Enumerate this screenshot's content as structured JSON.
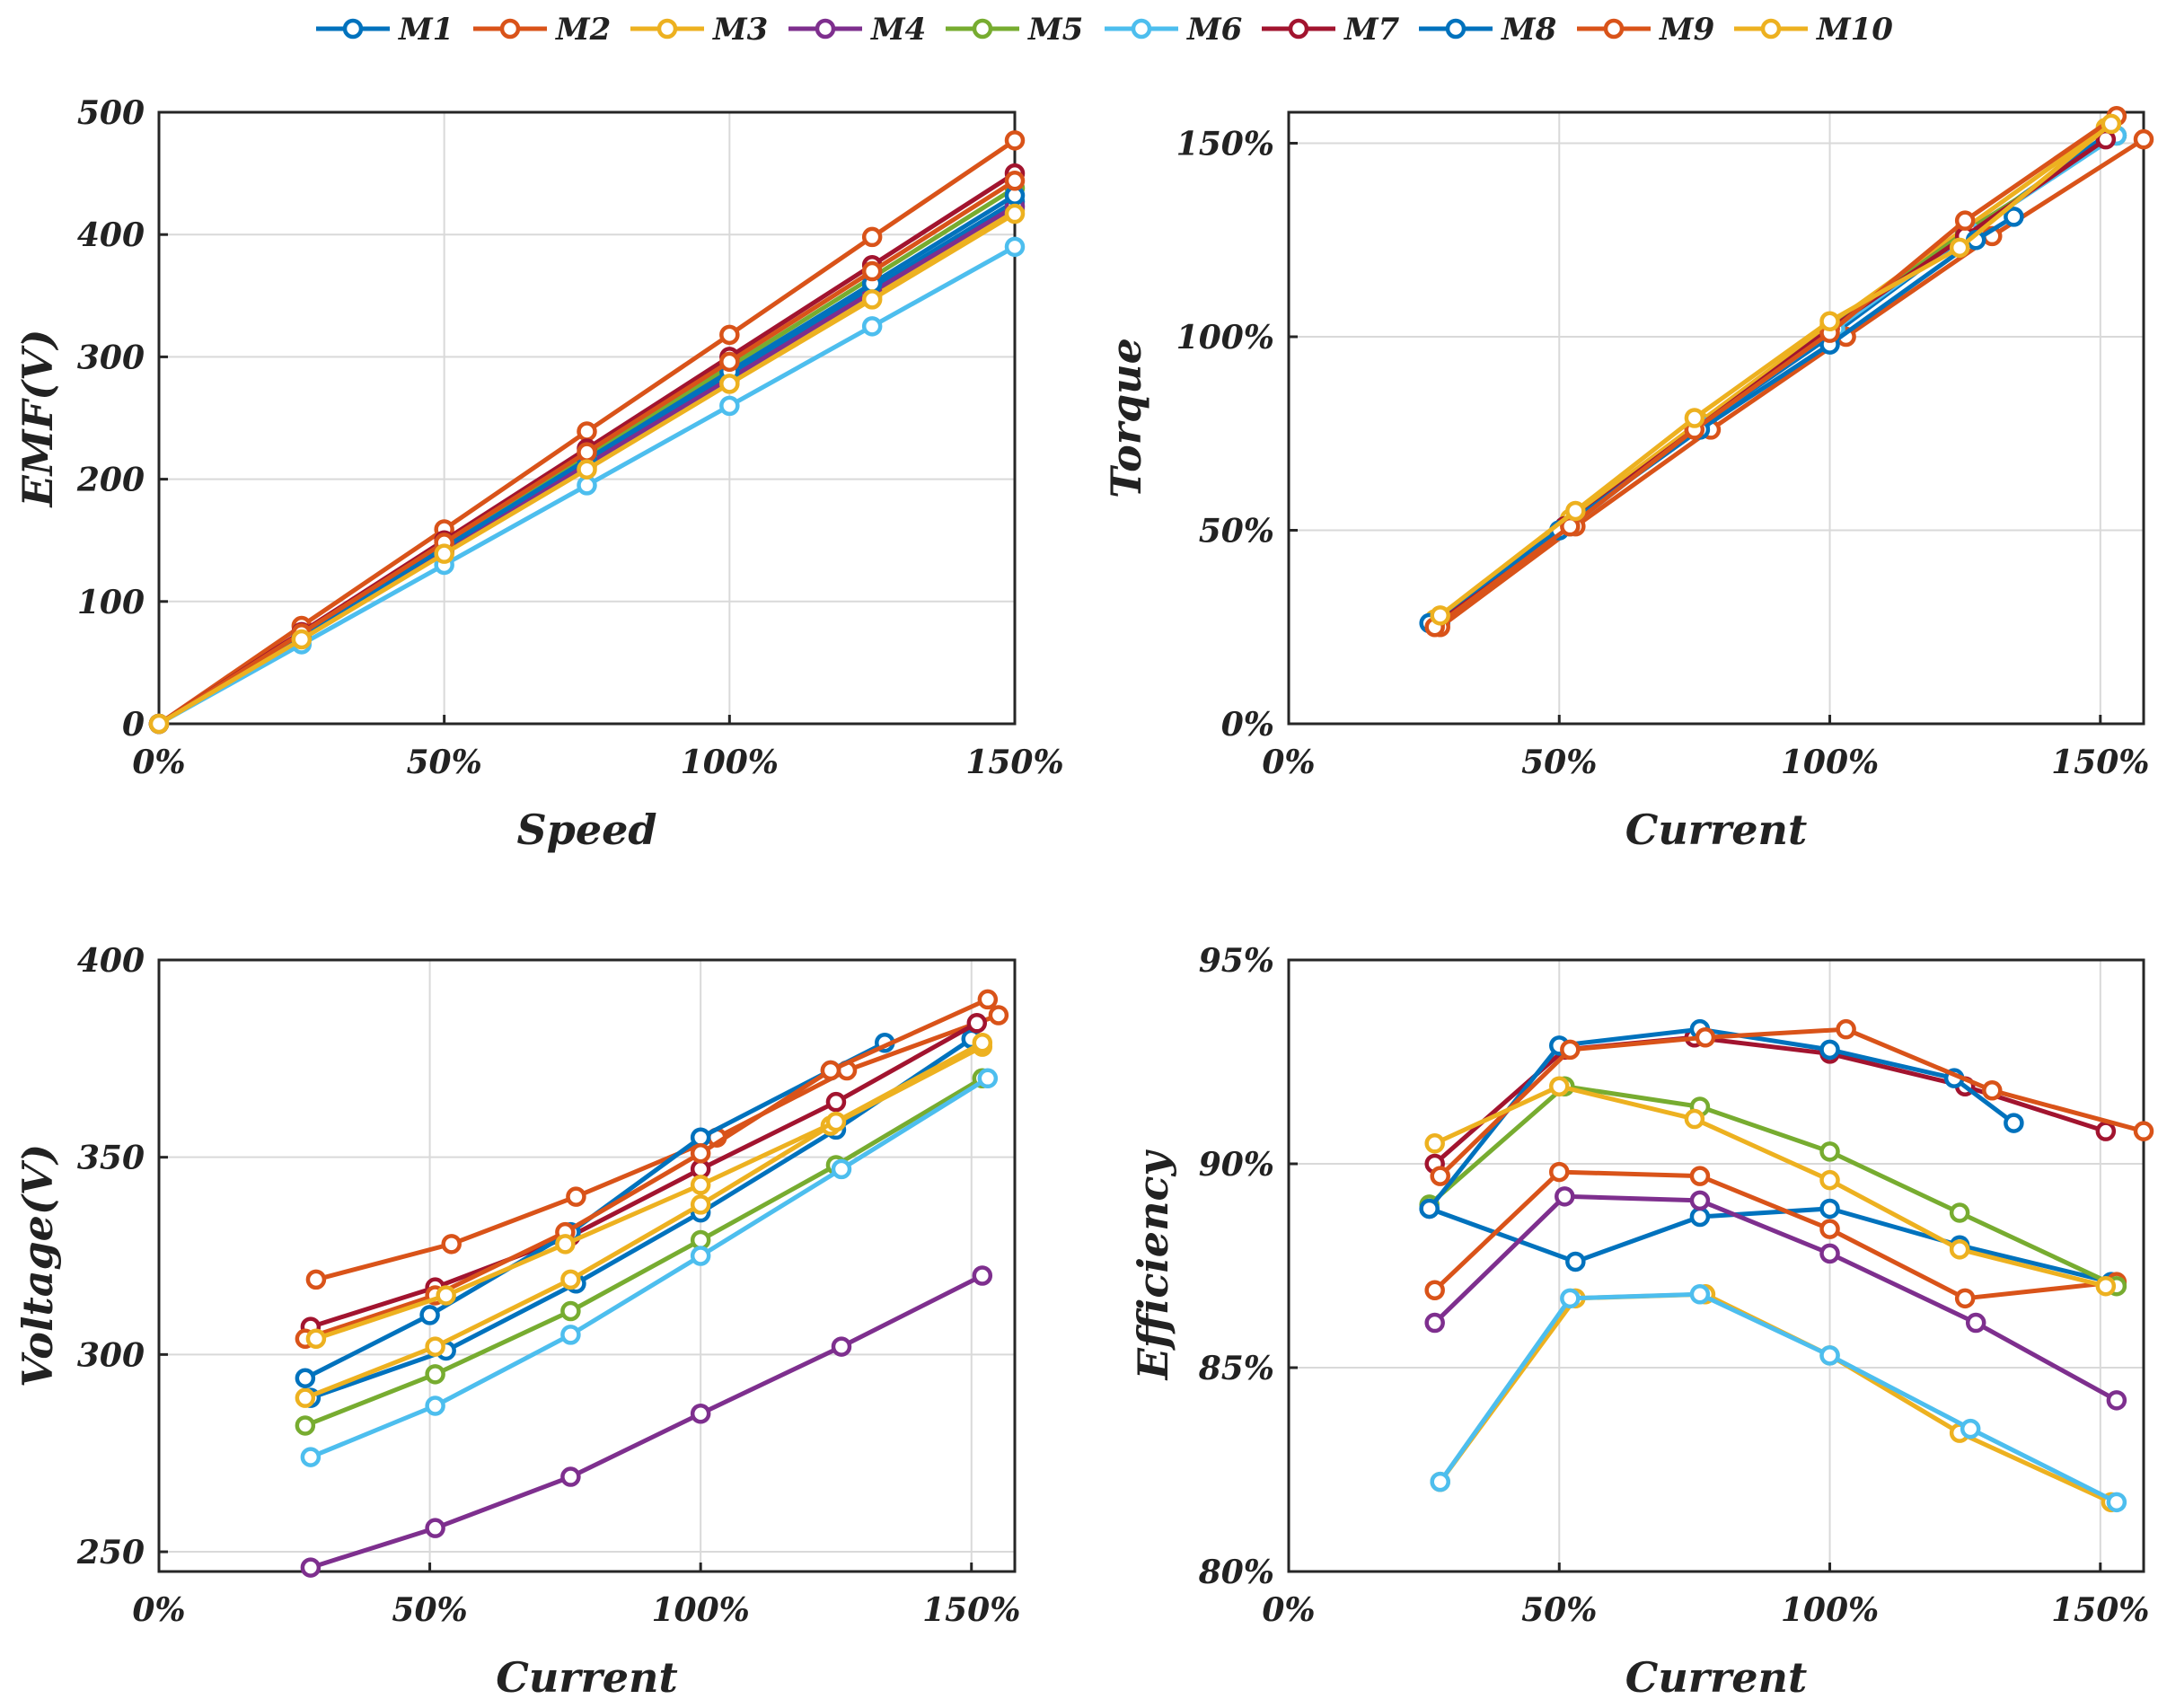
{
  "colors": {
    "M1": "#0072BD",
    "M2": "#D95319",
    "M3": "#EDB120",
    "M4": "#7E2F8E",
    "M5": "#77AC30",
    "M6": "#4DBEEE",
    "M7": "#A2142F",
    "M8": "#0072BD",
    "M9": "#D95319",
    "M10": "#EDB120"
  },
  "legend": [
    "M1",
    "M2",
    "M3",
    "M4",
    "M5",
    "M6",
    "M7",
    "M8",
    "M9",
    "M10"
  ],
  "chart_data": [
    {
      "type": "line",
      "id": "emf",
      "xlabel": "Speed",
      "ylabel": "EMF(V)",
      "xlim": [
        0,
        150
      ],
      "ylim": [
        0,
        500
      ],
      "xticks": [
        0,
        50,
        100,
        150
      ],
      "xticklabels": [
        "0%",
        "50%",
        "100%",
        "150%"
      ],
      "yticks": [
        0,
        100,
        200,
        300,
        400,
        500
      ],
      "yticklabels": [
        "0",
        "100",
        "200",
        "300",
        "400",
        "500"
      ],
      "x": [
        0,
        25,
        50,
        75,
        100,
        125,
        150
      ],
      "series": [
        {
          "name": "M1",
          "values": [
            0,
            71,
            143,
            214,
            285,
            356,
            427
          ]
        },
        {
          "name": "M2",
          "values": [
            0,
            80,
            159,
            239,
            318,
            398,
            477
          ]
        },
        {
          "name": "M3",
          "values": [
            0,
            70,
            140,
            210,
            280,
            350,
            420
          ]
        },
        {
          "name": "M4",
          "values": [
            0,
            71,
            141,
            212,
            282,
            353,
            423
          ]
        },
        {
          "name": "M5",
          "values": [
            0,
            73,
            146,
            219,
            292,
            365,
            438
          ]
        },
        {
          "name": "M6",
          "values": [
            0,
            65,
            130,
            195,
            260,
            325,
            390
          ]
        },
        {
          "name": "M7",
          "values": [
            0,
            75,
            150,
            225,
            300,
            375,
            450
          ]
        },
        {
          "name": "M8",
          "values": [
            0,
            72,
            144,
            216,
            288,
            360,
            432
          ]
        },
        {
          "name": "M9",
          "values": [
            0,
            74,
            148,
            222,
            296,
            370,
            444
          ]
        },
        {
          "name": "M10",
          "values": [
            0,
            69,
            139,
            208,
            278,
            347,
            417
          ]
        }
      ]
    },
    {
      "type": "line",
      "id": "torque",
      "xlabel": "Current",
      "ylabel": "Torque",
      "xlim": [
        0,
        158
      ],
      "ylim": [
        0,
        158
      ],
      "xticks": [
        0,
        50,
        100,
        150
      ],
      "xticklabels": [
        "0%",
        "50%",
        "100%",
        "150%"
      ],
      "yticks": [
        0,
        50,
        100,
        150
      ],
      "yticklabels": [
        "0%",
        "50%",
        "100%",
        "150%"
      ],
      "series": [
        {
          "name": "M1",
          "x": [
            28,
            51,
            76,
            100,
            126,
            152
          ],
          "values": [
            26,
            51,
            77,
            100,
            127,
            153
          ]
        },
        {
          "name": "M2",
          "x": [
            28,
            53,
            78,
            103,
            130,
            158
          ],
          "values": [
            25,
            51,
            76,
            100,
            126,
            151
          ]
        },
        {
          "name": "M3",
          "x": [
            27,
            52,
            76,
            100,
            125,
            151
          ],
          "values": [
            27,
            53,
            78,
            103,
            128,
            154
          ]
        },
        {
          "name": "M4",
          "x": [
            27,
            51,
            76,
            100,
            125,
            153
          ],
          "values": [
            26,
            51,
            77,
            102,
            127,
            152
          ]
        },
        {
          "name": "M5",
          "x": [
            27,
            51,
            76,
            100,
            125,
            153
          ],
          "values": [
            26,
            51,
            77,
            102,
            127,
            152
          ]
        },
        {
          "name": "M6",
          "x": [
            27,
            52,
            76,
            101,
            126,
            153
          ],
          "values": [
            26,
            51,
            77,
            102,
            127,
            152
          ]
        },
        {
          "name": "M7",
          "x": [
            27,
            51,
            75,
            100,
            125,
            151
          ],
          "values": [
            26,
            51,
            76,
            102,
            126,
            151
          ]
        },
        {
          "name": "M8",
          "x": [
            26,
            50,
            76,
            100,
            127,
            134
          ],
          "values": [
            26,
            50,
            76,
            98,
            125,
            131
          ]
        },
        {
          "name": "M9",
          "x": [
            27,
            52,
            75,
            100,
            125,
            153
          ],
          "values": [
            25,
            51,
            76,
            101,
            130,
            157
          ]
        },
        {
          "name": "M10",
          "x": [
            28,
            53,
            75,
            100,
            124,
            152
          ],
          "values": [
            28,
            55,
            79,
            104,
            123,
            155
          ]
        }
      ]
    },
    {
      "type": "line",
      "id": "voltage",
      "xlabel": "Current",
      "ylabel": "Voltage(V)",
      "xlim": [
        0,
        158
      ],
      "ylim": [
        245,
        400
      ],
      "xticks": [
        0,
        50,
        100,
        150
      ],
      "xticklabels": [
        "0%",
        "50%",
        "100%",
        "150%"
      ],
      "yticks": [
        250,
        300,
        350,
        400
      ],
      "yticklabels": [
        "250",
        "300",
        "350",
        "400"
      ],
      "series": [
        {
          "name": "M1",
          "x": [
            28,
            53,
            77,
            100,
            125,
            150
          ],
          "values": [
            289,
            301,
            318,
            336,
            357,
            380
          ]
        },
        {
          "name": "M2",
          "x": [
            29,
            54,
            77,
            103,
            127,
            155
          ],
          "values": [
            319,
            328,
            340,
            355,
            372,
            386
          ]
        },
        {
          "name": "M3",
          "x": [
            27,
            51,
            76,
            100,
            124,
            152
          ],
          "values": [
            289,
            302,
            319,
            338,
            358,
            378
          ]
        },
        {
          "name": "M4",
          "x": [
            28,
            51,
            76,
            100,
            126,
            152
          ],
          "values": [
            246,
            256,
            269,
            285,
            302,
            320
          ]
        },
        {
          "name": "M5",
          "x": [
            27,
            51,
            76,
            100,
            125,
            152
          ],
          "values": [
            282,
            295,
            311,
            329,
            348,
            370
          ]
        },
        {
          "name": "M6",
          "x": [
            28,
            51,
            76,
            100,
            126,
            153
          ],
          "values": [
            274,
            287,
            305,
            325,
            347,
            370
          ]
        },
        {
          "name": "M7",
          "x": [
            28,
            51,
            76,
            100,
            125,
            151
          ],
          "values": [
            307,
            317,
            330,
            347,
            364,
            384
          ]
        },
        {
          "name": "M8",
          "x": [
            27,
            50,
            76,
            100,
            124,
            134
          ],
          "values": [
            294,
            310,
            331,
            355,
            372,
            379
          ]
        },
        {
          "name": "M9",
          "x": [
            27,
            51,
            75,
            100,
            124,
            153
          ],
          "values": [
            304,
            315,
            331,
            351,
            372,
            390
          ]
        },
        {
          "name": "M10",
          "x": [
            29,
            53,
            75,
            100,
            125,
            152
          ],
          "values": [
            304,
            315,
            328,
            343,
            359,
            379
          ]
        }
      ]
    },
    {
      "type": "line",
      "id": "efficiency",
      "xlabel": "Current",
      "ylabel": "Efficiency",
      "xlim": [
        0,
        158
      ],
      "ylim": [
        80,
        95
      ],
      "xticks": [
        0,
        50,
        100,
        150
      ],
      "xticklabels": [
        "0%",
        "50%",
        "100%",
        "150%"
      ],
      "yticks": [
        80,
        85,
        90,
        95
      ],
      "yticklabels": [
        "80%",
        "85%",
        "90%",
        "95%"
      ],
      "series": [
        {
          "name": "M1",
          "x": [
            26,
            53,
            76,
            100,
            124,
            152
          ],
          "values": [
            88.9,
            87.6,
            88.7,
            88.9,
            88.0,
            87.1
          ]
        },
        {
          "name": "M2",
          "x": [
            27,
            50,
            76,
            100,
            125,
            153
          ],
          "values": [
            86.9,
            89.8,
            89.7,
            88.4,
            86.7,
            87.1
          ]
        },
        {
          "name": "M3",
          "x": [
            28,
            53,
            77,
            100,
            124,
            152
          ],
          "values": [
            82.2,
            86.7,
            86.8,
            85.3,
            83.4,
            81.7
          ]
        },
        {
          "name": "M4",
          "x": [
            27,
            51,
            76,
            100,
            127,
            153
          ],
          "values": [
            86.1,
            89.2,
            89.1,
            87.8,
            86.1,
            84.2
          ]
        },
        {
          "name": "M5",
          "x": [
            26,
            51,
            76,
            100,
            124,
            153
          ],
          "values": [
            89.0,
            91.9,
            91.4,
            90.3,
            88.8,
            87.0
          ]
        },
        {
          "name": "M6",
          "x": [
            28,
            52,
            76,
            100,
            126,
            153
          ],
          "values": [
            82.2,
            86.7,
            86.8,
            85.3,
            83.5,
            81.7
          ]
        },
        {
          "name": "M7",
          "x": [
            27,
            51,
            75,
            100,
            125,
            151
          ],
          "values": [
            90.0,
            92.8,
            93.1,
            92.7,
            91.9,
            90.8
          ]
        },
        {
          "name": "M8",
          "x": [
            26,
            50,
            76,
            100,
            123,
            134
          ],
          "values": [
            88.9,
            92.9,
            93.3,
            92.8,
            92.1,
            91.0
          ]
        },
        {
          "name": "M9",
          "x": [
            28,
            52,
            77,
            103,
            130,
            158
          ],
          "values": [
            89.7,
            92.8,
            93.1,
            93.3,
            91.8,
            90.8
          ]
        },
        {
          "name": "M10",
          "x": [
            27,
            50,
            75,
            100,
            124,
            151
          ],
          "values": [
            90.5,
            91.9,
            91.1,
            89.6,
            87.9,
            87.0
          ]
        }
      ]
    }
  ]
}
